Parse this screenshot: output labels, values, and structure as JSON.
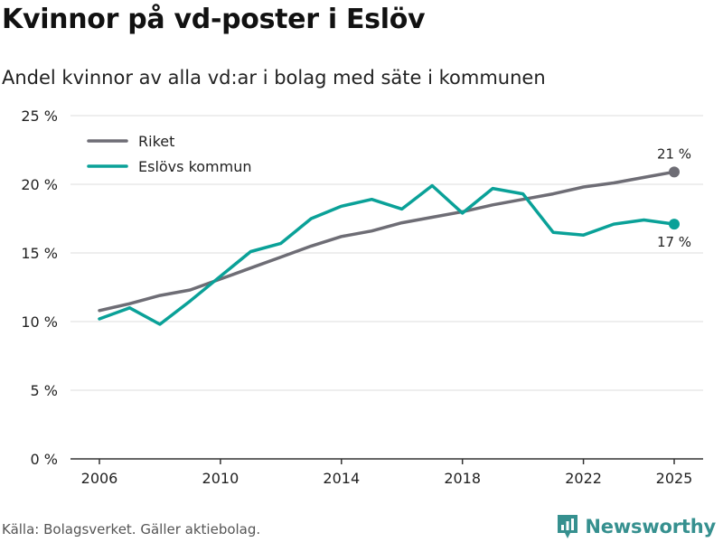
{
  "header": {
    "title": "Kvinnor på vd-poster i Eslöv",
    "subtitle": "Andel kvinnor av alla vd:ar i bolag med säte i kommunen"
  },
  "footer": {
    "source": "Källa: Bolagsverket. Gäller aktiebolag.",
    "brand": "Newsworthy",
    "brand_icon": "newsworthy-logo-icon"
  },
  "colors": {
    "riket": "#6e6d75",
    "eslov": "#0aa198",
    "grid": "#dddddd",
    "axis": "#333333",
    "brand": "#36908f"
  },
  "chart_data": {
    "type": "line",
    "x": [
      2006,
      2007,
      2008,
      2009,
      2010,
      2011,
      2012,
      2013,
      2014,
      2015,
      2016,
      2017,
      2018,
      2019,
      2020,
      2021,
      2022,
      2023,
      2024,
      2025
    ],
    "series": [
      {
        "name": "Riket",
        "values": [
          10.8,
          11.3,
          11.9,
          12.3,
          13.1,
          13.9,
          14.7,
          15.5,
          16.2,
          16.6,
          17.2,
          17.6,
          18.0,
          18.5,
          18.9,
          19.3,
          19.8,
          20.1,
          20.5,
          20.9
        ],
        "end_label": "21 %",
        "end_label_position": "above"
      },
      {
        "name": "Eslövs kommun",
        "values": [
          10.2,
          11.0,
          9.8,
          11.5,
          13.3,
          15.1,
          15.7,
          17.5,
          18.4,
          18.9,
          18.2,
          19.9,
          17.9,
          19.7,
          19.3,
          16.5,
          16.3,
          17.1,
          17.4,
          17.1
        ],
        "end_label": "17 %",
        "end_label_position": "below"
      }
    ],
    "yticks": [
      0,
      5,
      10,
      15,
      20,
      25
    ],
    "ytick_labels": [
      "0 %",
      "5 %",
      "10 %",
      "15 %",
      "20 %",
      "25 %"
    ],
    "xticks": [
      2006,
      2010,
      2014,
      2018,
      2022,
      2025
    ],
    "xtick_labels": [
      "2006",
      "2010",
      "2014",
      "2018",
      "2022",
      "2025"
    ],
    "ylim": [
      0,
      25
    ],
    "xlim": [
      2006,
      2025
    ],
    "legend_position": "top-left",
    "grid": "horizontal"
  }
}
